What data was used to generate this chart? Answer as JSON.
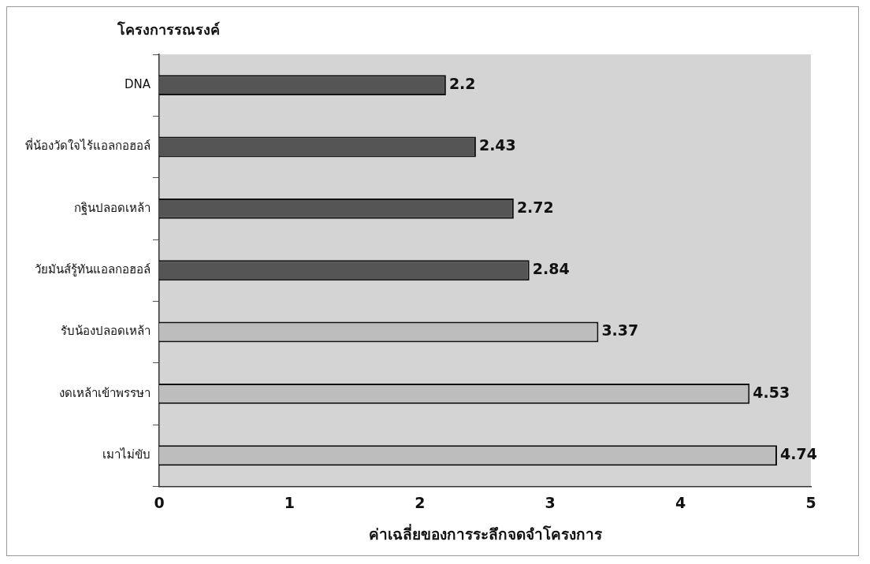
{
  "chart_data": {
    "type": "bar",
    "orientation": "horizontal",
    "ylabel": "โครงการรณรงค์",
    "xlabel": "ค่าเฉลี่ยของการระลึกจดจำโครงการ",
    "categories": [
      "DNA",
      "พี่น้องวัดใจไร้แอลกอฮอล์",
      "กฐินปลอดเหล้า",
      "วัยมันส์รู้ทันแอลกอฮอล์",
      "รับน้องปลอดเหล้า",
      "งดเหล้าเข้าพรรษา",
      "เมาไม่ขับ"
    ],
    "values": [
      2.2,
      2.43,
      2.72,
      2.84,
      3.37,
      4.53,
      4.74
    ],
    "colors": [
      "#555555",
      "#555555",
      "#555555",
      "#555555",
      "#bdbdbd",
      "#bdbdbd",
      "#bdbdbd"
    ],
    "xlim": [
      0,
      5
    ],
    "xticks": [
      0,
      1,
      2,
      3,
      4,
      5
    ],
    "data_labels": true,
    "grid": false,
    "legend": false
  }
}
